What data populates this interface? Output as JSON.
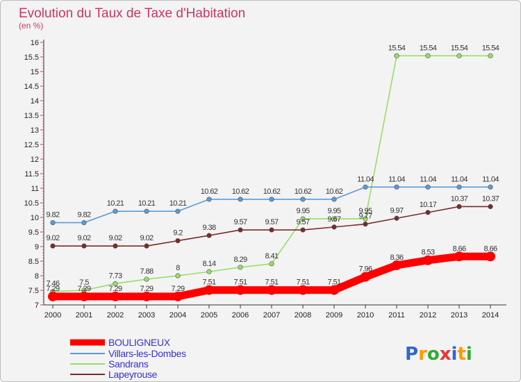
{
  "chart_data": {
    "type": "line",
    "title": "Evolution du Taux de Taxe d'Habitation",
    "subtitle": "(en %)",
    "x": [
      2000,
      2001,
      2002,
      2003,
      2004,
      2005,
      2006,
      2007,
      2008,
      2009,
      2010,
      2011,
      2012,
      2013,
      2014
    ],
    "ylim": [
      7,
      16
    ],
    "y_ticks": [
      "7",
      "7.5",
      "8",
      "8.5",
      "9",
      "9.5",
      "10",
      "10.5",
      "11",
      "11.5",
      "12",
      "12.5",
      "13",
      "13.5",
      "14",
      "14.5",
      "15",
      "15.5",
      "16"
    ],
    "grid": false,
    "legend_position": "bottom-left",
    "series": [
      {
        "name": "BOULIGNEUX",
        "color": "#ff0000",
        "values": [
          7.29,
          7.29,
          7.29,
          7.29,
          7.29,
          7.51,
          7.51,
          7.51,
          7.51,
          7.51,
          7.96,
          8.36,
          8.53,
          8.66,
          8.66
        ],
        "labels": [
          "7.29",
          "7.29",
          "7.29",
          "7.29",
          "7.29",
          "7.51",
          "7.51",
          "7.51",
          "7.51",
          "7.51",
          "7.96",
          "8.36",
          "8.53",
          "8.66",
          "8.66"
        ]
      },
      {
        "name": "Villars-les-Dombes",
        "color": "#5b9bd5",
        "values": [
          9.82,
          9.82,
          10.21,
          10.21,
          10.21,
          10.62,
          10.62,
          10.62,
          10.62,
          10.62,
          11.04,
          11.04,
          11.04,
          11.04,
          11.04
        ],
        "labels": [
          "9.82",
          "9.82",
          "10.21",
          "10.21",
          "10.21",
          "10.62",
          "10.62",
          "10.62",
          "10.62",
          "10.62",
          "11.04",
          "11.04",
          "11.04",
          "11.04",
          "11.04"
        ]
      },
      {
        "name": "Sandrans",
        "color": "#99dd66",
        "values": [
          7.46,
          7.5,
          7.73,
          7.88,
          8,
          8.14,
          8.29,
          8.41,
          9.95,
          9.95,
          9.95,
          15.54,
          15.54,
          15.54,
          15.54
        ],
        "labels": [
          "7.46",
          "7.5",
          "7.73",
          "7.88",
          "8",
          "8.14",
          "8.29",
          "8.41",
          "9.95",
          "9.95",
          "9.95",
          "15.54",
          "15.54",
          "15.54",
          "15.54"
        ]
      },
      {
        "name": "Lapeyrouse",
        "color": "#7a2a2a",
        "values": [
          9.02,
          9.02,
          9.02,
          9.02,
          9.2,
          9.38,
          9.57,
          9.57,
          9.57,
          9.67,
          9.77,
          9.97,
          10.17,
          10.37,
          10.37
        ],
        "labels": [
          "9.02",
          "9.02",
          "9.02",
          "9.02",
          "9.2",
          "9.38",
          "9.57",
          "9.57",
          "9.57",
          "9.67",
          "9.77",
          "9.97",
          "10.17",
          "10.37",
          "10.37"
        ]
      }
    ]
  },
  "logo": {
    "text": "Proxiti",
    "letters": [
      "P",
      "r",
      "o",
      "x",
      "i",
      "t",
      "i"
    ]
  }
}
